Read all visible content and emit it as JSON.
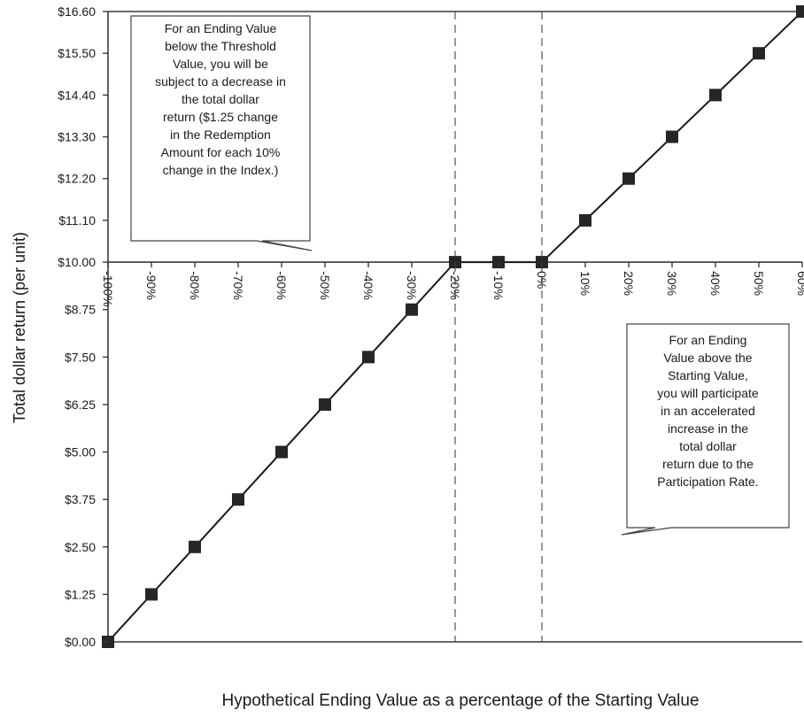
{
  "chart_data": {
    "type": "line",
    "title": "",
    "xlabel": "Hypothetical Ending Value as a percentage of the Starting Value",
    "ylabel": "Total dollar return (per unit)",
    "x": [
      -100,
      -90,
      -80,
      -70,
      -60,
      -50,
      -40,
      -30,
      -20,
      -10,
      0,
      10,
      20,
      30,
      40,
      50,
      60
    ],
    "x_tick_labels": [
      "-100%",
      "-90%",
      "-80%",
      "-70%",
      "-60%",
      "-50%",
      "-40%",
      "-30%",
      "-20%",
      "-10%",
      "0%",
      "10%",
      "20%",
      "30%",
      "40%",
      "50%",
      "60%"
    ],
    "series": [
      {
        "values": [
          0.0,
          1.25,
          2.5,
          3.75,
          5.0,
          6.25,
          7.5,
          8.75,
          10.0,
          10.0,
          10.0,
          11.1,
          12.2,
          13.3,
          14.4,
          15.5,
          16.6
        ],
        "color": "#1a1a1a",
        "marker": "square"
      }
    ],
    "y_ticks": [
      0.0,
      1.25,
      2.5,
      3.75,
      5.0,
      6.25,
      7.5,
      8.75,
      10.0,
      11.1,
      12.2,
      13.3,
      14.4,
      15.5,
      16.6
    ],
    "y_tick_labels": [
      "$0.00",
      "$1.25",
      "$2.50",
      "$3.75",
      "$5.00",
      "$6.25",
      "$7.50",
      "$8.75",
      "$10.00",
      "$11.10",
      "$12.20",
      "$13.30",
      "$14.40",
      "$15.50",
      "$16.60"
    ],
    "xlim": [
      -100,
      60
    ],
    "ylim": [
      0,
      16.6
    ],
    "reference_lines": [
      {
        "x": -20,
        "style": "dashed"
      },
      {
        "x": 0,
        "style": "dashed"
      }
    ],
    "x_axis_crosses_at_y": 10.0,
    "grid": false,
    "annotations": [
      {
        "lines": [
          "For an Ending Value",
          "below the Threshold",
          "Value, you will be",
          "subject to a decrease in",
          "the total dollar",
          "return ($1.25 change",
          "in the Redemption",
          "Amount for each 10%",
          "change in the Index.)"
        ]
      },
      {
        "lines": [
          "For an Ending",
          "Value above the",
          "Starting Value,",
          "you will participate",
          "in an accelerated",
          "increase in the",
          "total dollar",
          "return due to the",
          "Participation Rate."
        ]
      }
    ]
  }
}
